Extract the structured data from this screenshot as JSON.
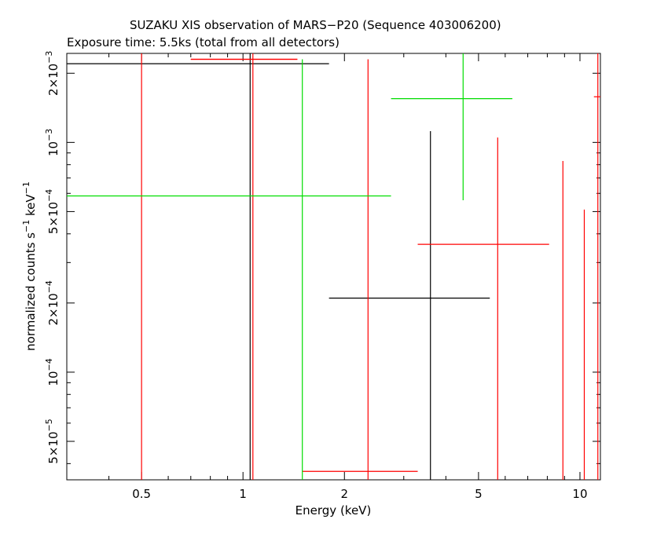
{
  "chart_data": {
    "type": "scatter",
    "title": "SUZAKU XIS observation of MARS−P20 (Sequence 403006200)",
    "subtitle": "Exposure time: 5.5ks (total from all detectors)",
    "xlabel": "Energy (keV)",
    "ylabel_parts": [
      "normalized counts s",
      "−1",
      " keV",
      "−1"
    ],
    "x_scale": "log",
    "y_scale": "log",
    "xlim": [
      0.3,
      11.5
    ],
    "ylim": [
      3.4e-05,
      0.00244
    ],
    "x_ticks": [
      {
        "value": 0.5,
        "label": "0.5"
      },
      {
        "value": 1,
        "label": "1"
      },
      {
        "value": 2,
        "label": "2"
      },
      {
        "value": 5,
        "label": "5"
      },
      {
        "value": 10,
        "label": "10"
      }
    ],
    "y_ticks": [
      {
        "value": 5e-05,
        "mant": "5×10",
        "exp": "−5"
      },
      {
        "value": 0.0001,
        "mant": "10",
        "exp": "−4"
      },
      {
        "value": 0.0002,
        "mant": "2×10",
        "exp": "−4"
      },
      {
        "value": 0.0005,
        "mant": "5×10",
        "exp": "−4"
      },
      {
        "value": 0.001,
        "mant": "10",
        "exp": "−3"
      },
      {
        "value": 0.002,
        "mant": "2×10",
        "exp": "−3"
      }
    ],
    "grid": false,
    "series": [
      {
        "color": "#000000",
        "points": [
          {
            "x": 1.05,
            "y": 0.0022,
            "xlo": 0.3,
            "xhi": 1.8,
            "ylo": 3.4e-05,
            "yhi": 0.00244
          },
          {
            "x": 3.6,
            "y": 0.00021,
            "xlo": 1.8,
            "xhi": 5.4,
            "ylo": 3.4e-05,
            "yhi": 0.00112
          }
        ]
      },
      {
        "color": "#ff0000",
        "points": [
          {
            "x": 0.5,
            "y": 0.0023,
            "xlo": 0.7,
            "xhi": 1.45,
            "ylo": 3.4e-05,
            "yhi": 0.00244
          },
          {
            "x": 1.07,
            "y": 0.0023,
            "xlo": 0.7,
            "xhi": 1.45,
            "ylo": 3.4e-05,
            "yhi": 0.00244
          },
          {
            "x": 2.35,
            "y": 3.7e-05,
            "xlo": 1.5,
            "xhi": 3.3,
            "ylo": 3.4e-05,
            "yhi": 0.0023
          },
          {
            "x": 5.7,
            "y": 0.00036,
            "xlo": 3.3,
            "xhi": 8.1,
            "ylo": 3.4e-05,
            "yhi": 0.00105
          },
          {
            "x": 8.9,
            "y": 5e-05,
            "xlo": 8.9,
            "xhi": 8.9,
            "ylo": 3.4e-05,
            "yhi": 0.00083
          },
          {
            "x": 10.3,
            "y": 5e-05,
            "xlo": 10.3,
            "xhi": 10.3,
            "ylo": 3.4e-05,
            "yhi": 0.00051
          },
          {
            "x": 11.3,
            "y": 0.00158,
            "xlo": 11.0,
            "xhi": 11.5,
            "ylo": 3.4e-05,
            "yhi": 0.00244
          }
        ]
      },
      {
        "color": "#00dd00",
        "points": [
          {
            "x": 1.5,
            "y": 0.000585,
            "xlo": 0.3,
            "xhi": 2.75,
            "ylo": 3.4e-05,
            "yhi": 0.0023
          },
          {
            "x": 4.5,
            "y": 0.00155,
            "xlo": 2.75,
            "xhi": 6.3,
            "ylo": 0.00056,
            "yhi": 0.00244
          }
        ]
      }
    ]
  }
}
